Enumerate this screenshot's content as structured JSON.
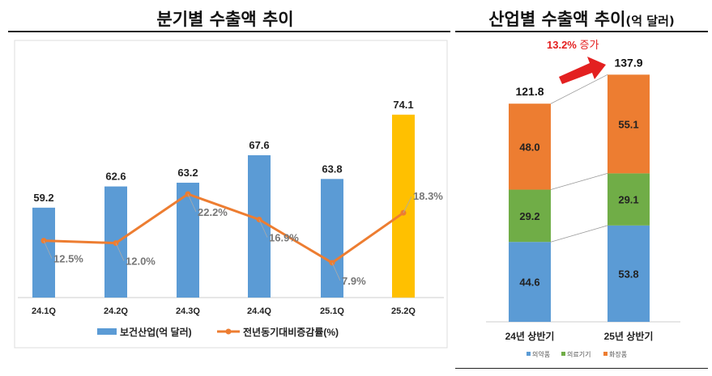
{
  "left": {
    "title": "분기별 수출액 추이",
    "chart_data": {
      "type": "bar+line",
      "categories": [
        "24.1Q",
        "24.2Q",
        "24.3Q",
        "24.4Q",
        "25.1Q",
        "25.2Q"
      ],
      "series": [
        {
          "name": "보건산업(억 달러)",
          "type": "bar",
          "values": [
            59.2,
            62.6,
            63.2,
            67.6,
            63.8,
            74.1
          ],
          "color": "#5b9bd5",
          "highlight_color": "#ffc000"
        },
        {
          "name": "전년동기대비증감률(%)",
          "type": "line",
          "values": [
            12.5,
            12.0,
            22.2,
            16.9,
            7.9,
            18.3
          ],
          "value_labels": [
            "12.5%",
            "12.0%",
            "22.2%",
            "16.9%",
            "7.9%",
            "18.3%"
          ],
          "color": "#ed7d31"
        }
      ]
    }
  },
  "right": {
    "title": "산업별 수출액 추이",
    "title_unit": "(억 달러)",
    "annotation": {
      "pct": "13.2%",
      "word": "증가"
    },
    "chart_data": {
      "type": "stacked-bar",
      "categories": [
        "24년 상반기",
        "25년 상반기"
      ],
      "totals": [
        121.8,
        137.9
      ],
      "series": [
        {
          "name": "의약품",
          "values": [
            44.6,
            53.8
          ],
          "color": "#5b9bd5"
        },
        {
          "name": "의료기기",
          "values": [
            29.2,
            29.1
          ],
          "color": "#70ad47"
        },
        {
          "name": "화장품",
          "values": [
            48.0,
            55.1
          ],
          "color": "#ed7d31"
        }
      ]
    }
  }
}
